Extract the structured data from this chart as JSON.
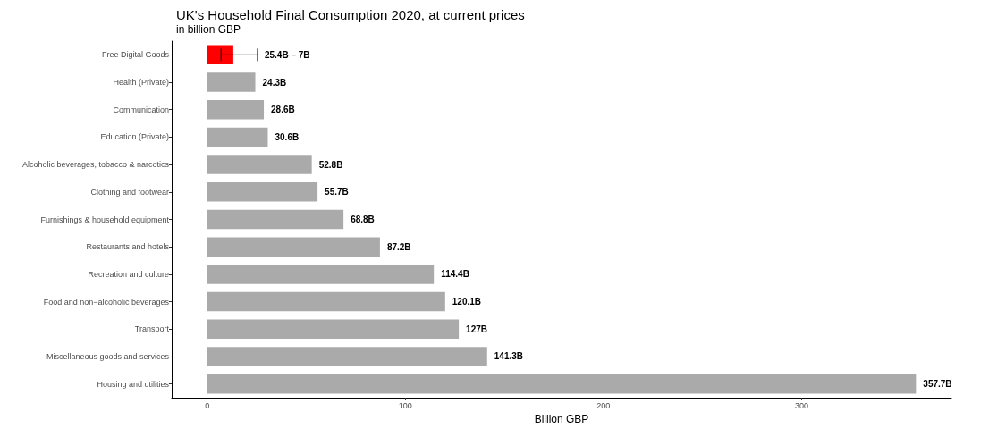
{
  "chart_data": {
    "type": "bar",
    "orientation": "horizontal",
    "title": "UK's Household Final Consumption 2020, at current prices",
    "subtitle": "in billion GBP",
    "xlabel": "Billion GBP",
    "categories": [
      "Free Digital Goods",
      "Health (Private)",
      "Communication",
      "Education (Private)",
      "Alcoholic beverages, tobacco & narcotics",
      "Clothing and footwear",
      "Furnishings & household equipment",
      "Restaurants and hotels",
      "Recreation and culture",
      "Food and non−alcoholic beverages",
      "Transport",
      "Miscellaneous goods and services",
      "Housing and utilities"
    ],
    "values": [
      13.2,
      24.3,
      28.6,
      30.6,
      52.8,
      55.7,
      68.8,
      87.2,
      114.4,
      120.1,
      127,
      141.3,
      357.7
    ],
    "colors": [
      "#ff0000",
      "#aaaaaa",
      "#aaaaaa",
      "#aaaaaa",
      "#aaaaaa",
      "#aaaaaa",
      "#aaaaaa",
      "#aaaaaa",
      "#aaaaaa",
      "#aaaaaa",
      "#aaaaaa",
      "#aaaaaa",
      "#aaaaaa"
    ],
    "errors": [
      [
        7,
        25.4
      ],
      null,
      null,
      null,
      null,
      null,
      null,
      null,
      null,
      null,
      null,
      null,
      null
    ],
    "annotations": [
      {
        "text": "25.4B – 7B",
        "x": 25.4,
        "y": "Free Digital Goods"
      }
    ],
    "value_labels": [
      null,
      "24.3B",
      "28.6B",
      "30.6B",
      "52.8B",
      "55.7B",
      "68.8B",
      "87.2B",
      "114.4B",
      "120.1B",
      "127B",
      "141.3B",
      "357.7B"
    ],
    "xlim": [
      -17.9,
      375.6
    ],
    "xticks": [
      0,
      100,
      200,
      300
    ],
    "grid": false
  }
}
